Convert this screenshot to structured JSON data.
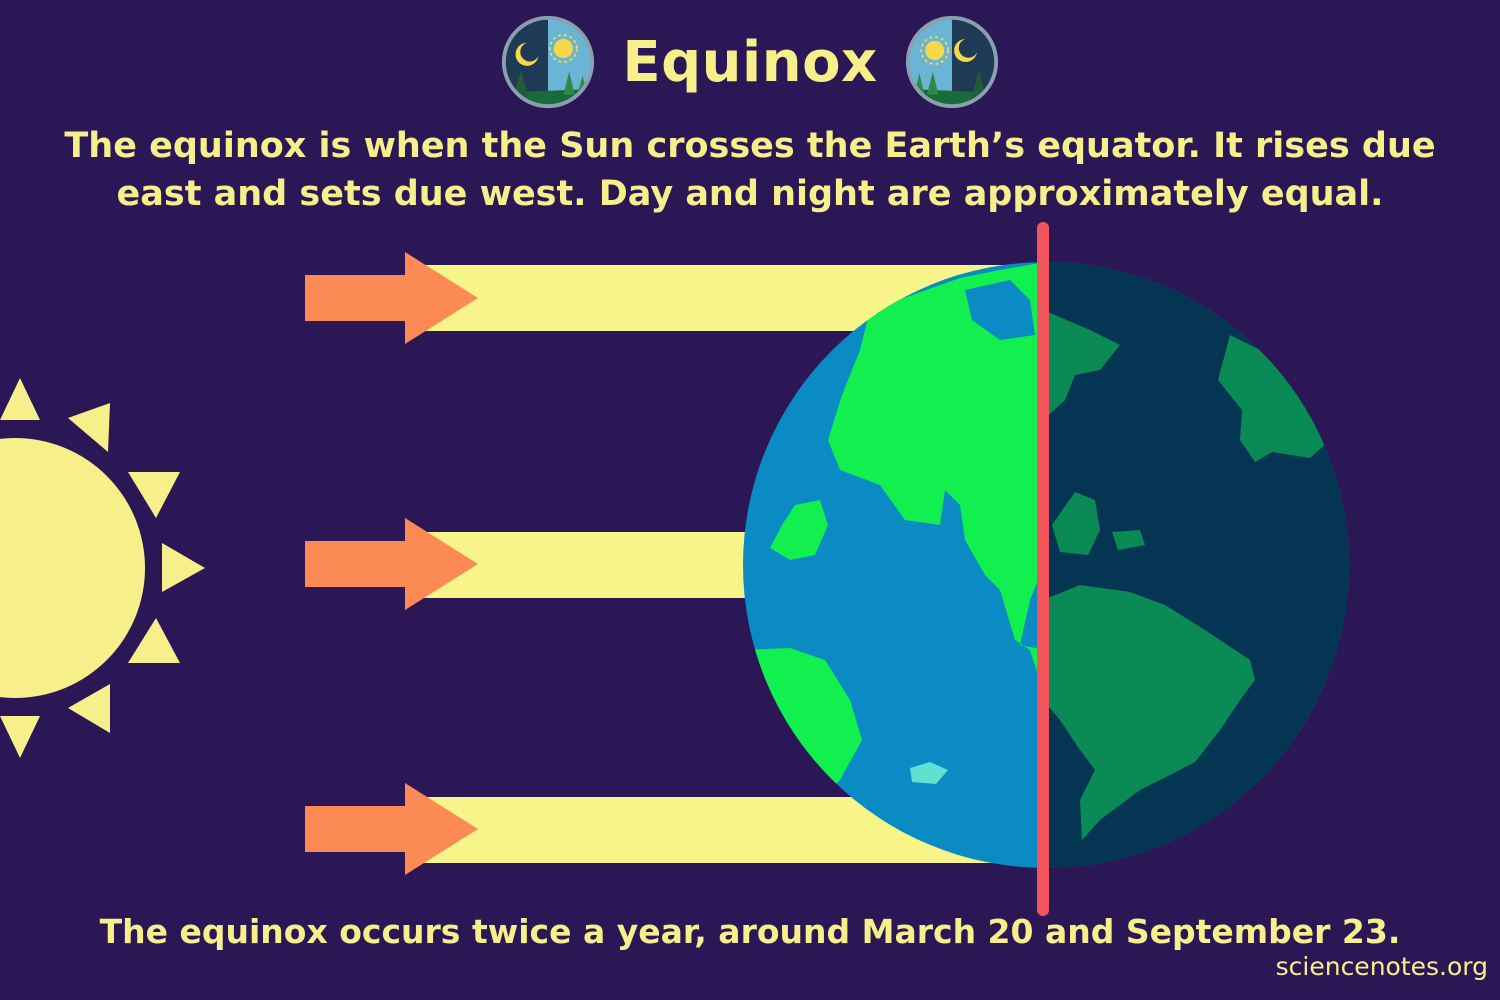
{
  "title": "Equinox",
  "description": "The equinox is when the Sun crosses the Earth’s equator. It rises due east and sets due west. Day and night are approximately equal.",
  "footer": "The equinox occurs twice a year, around March 20 and September 23.",
  "credit": "sciencenotes.org",
  "colors": {
    "background": "#2b1656",
    "text": "#f7f08a",
    "sun": "#f7f08a",
    "ray": "#f7f48a",
    "arrow": "#fb8a55",
    "ocean_day": "#0a8bc3",
    "land_day": "#12f04f",
    "ocean_night": "#043552",
    "land_night": "#0a8a55",
    "terminator": "#f2545b"
  },
  "icons": [
    "day-night-badge-icon",
    "sun-icon",
    "earth-icon",
    "sun-ray-arrow-icon"
  ]
}
